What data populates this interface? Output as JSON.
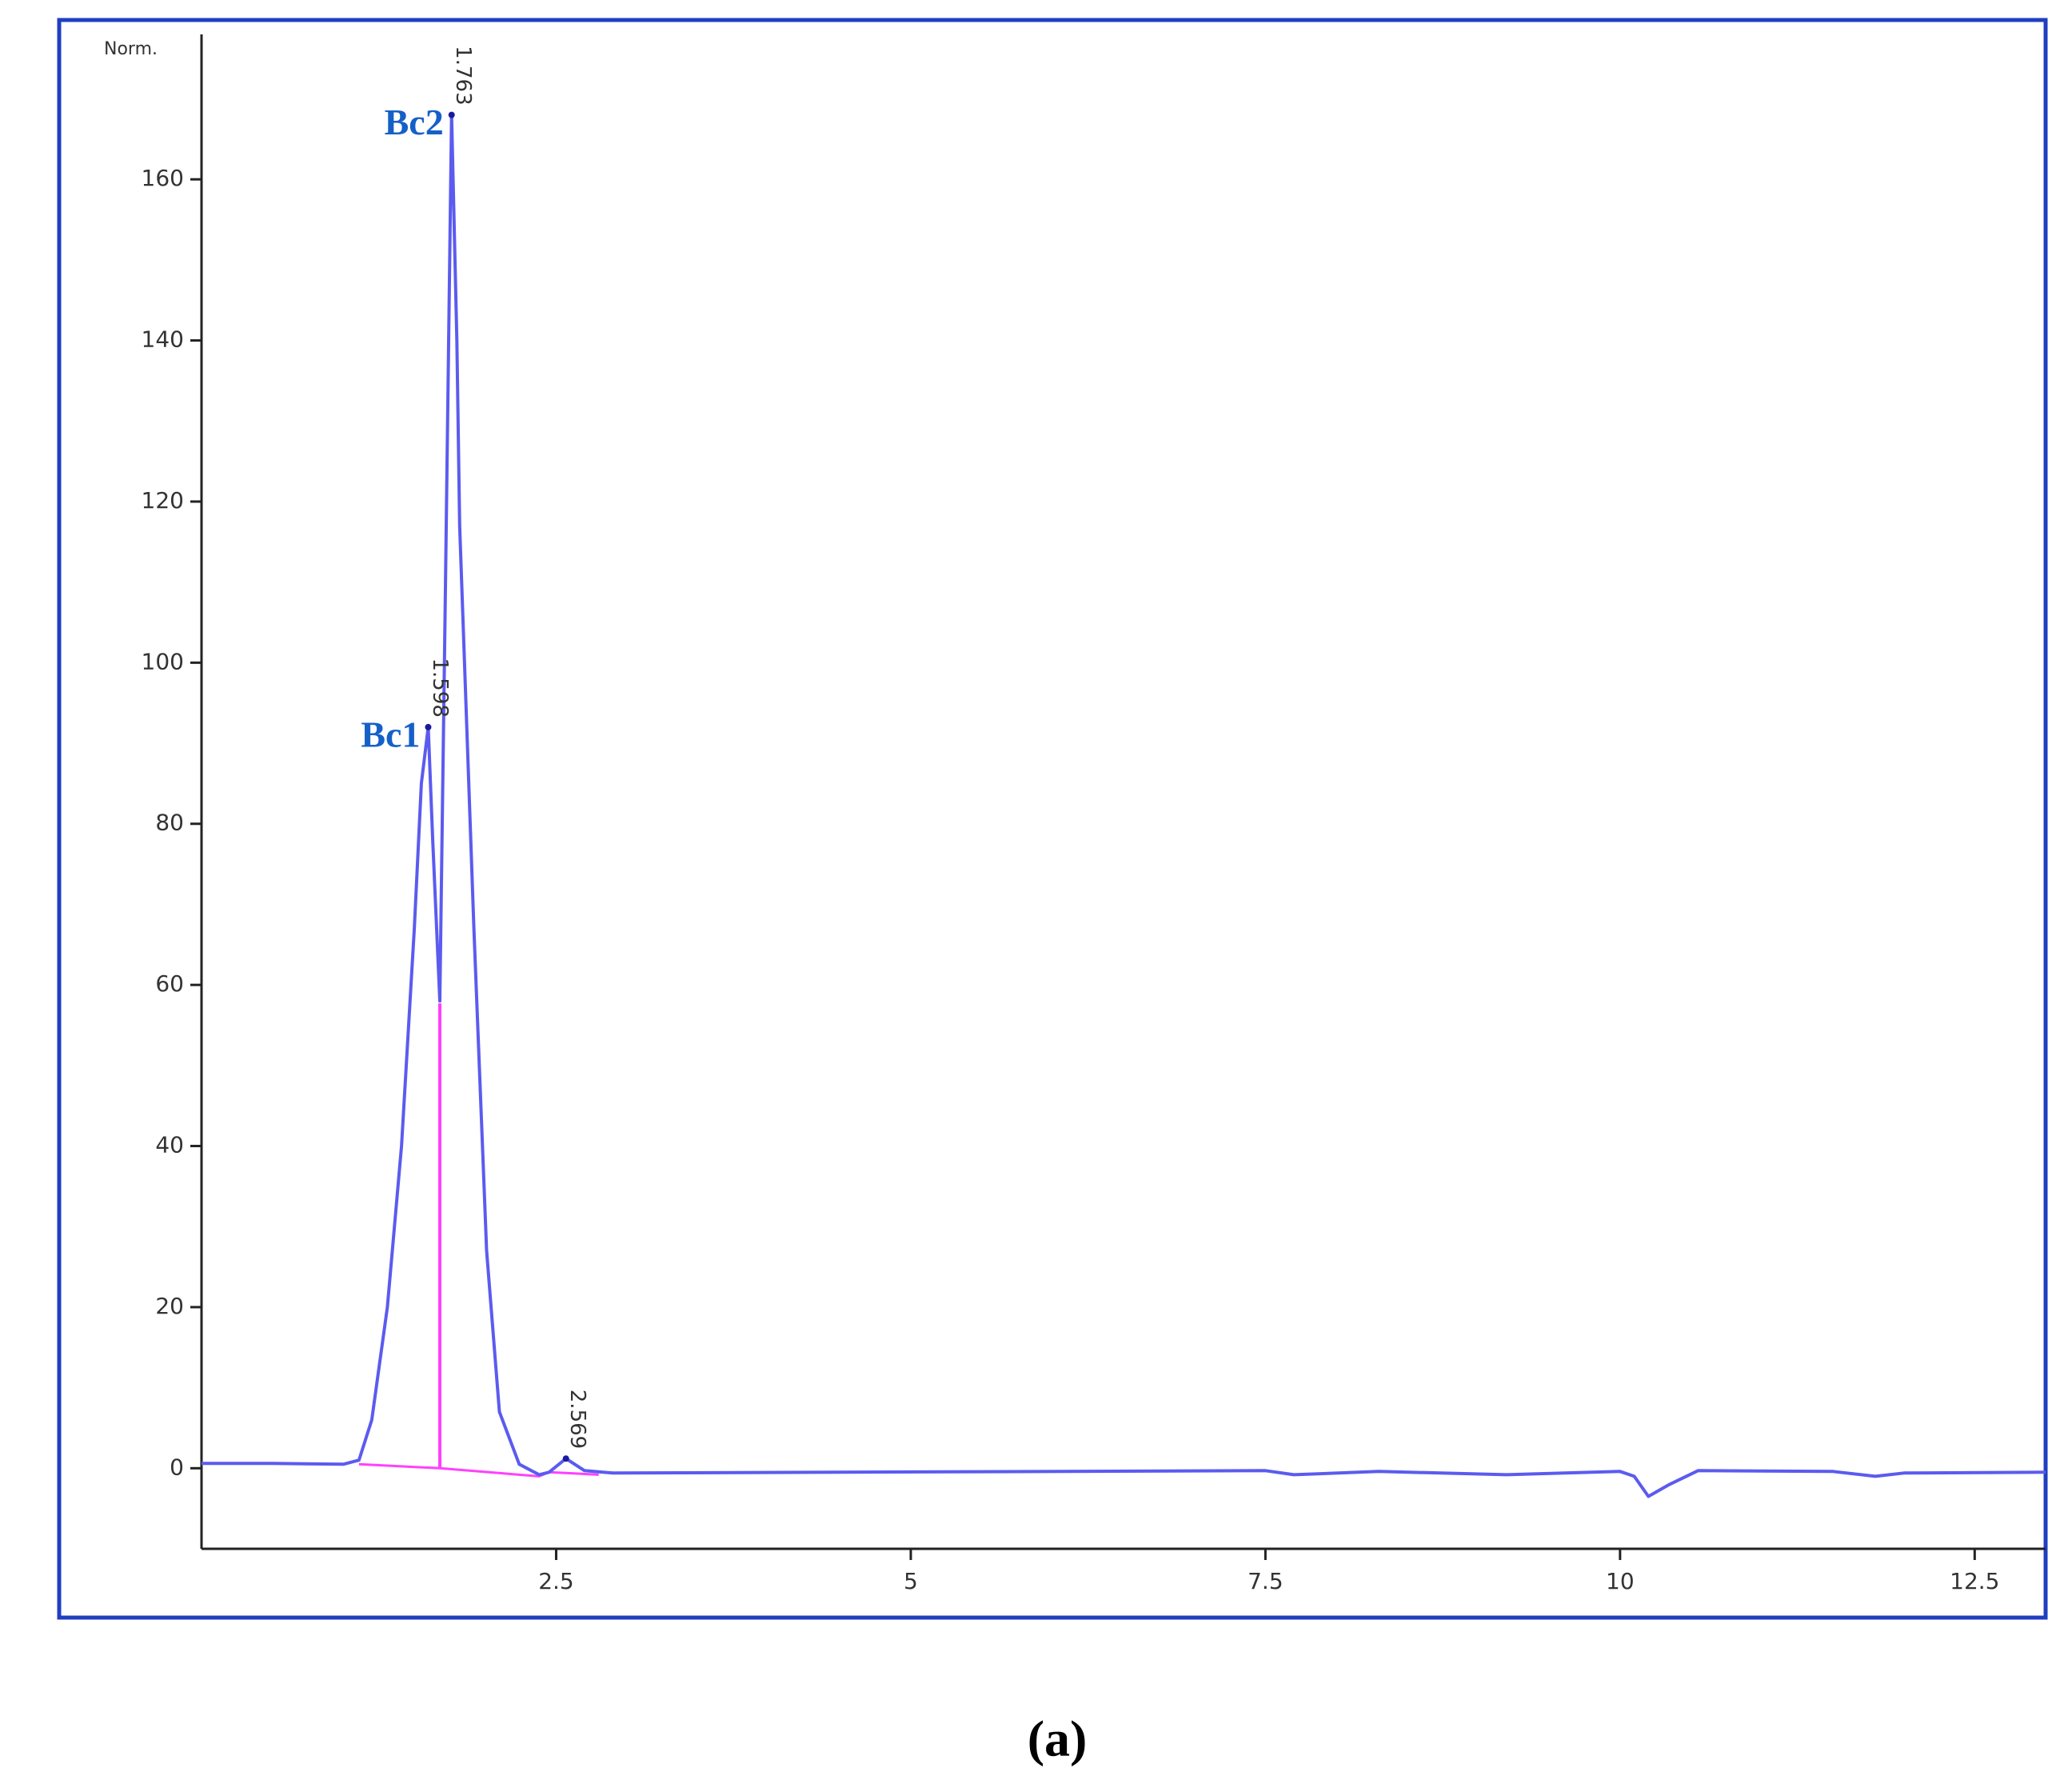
{
  "chart_data": {
    "type": "line",
    "y_axis_label": "Norm.",
    "caption": "(a)",
    "xlim": [
      0,
      13
    ],
    "ylim": [
      -10,
      177
    ],
    "xticks": [
      2.5,
      5,
      7.5,
      10,
      12.5
    ],
    "yticks": [
      0,
      20,
      40,
      60,
      80,
      100,
      120,
      140,
      160
    ],
    "color": "#5b5bf0",
    "x": [
      0,
      0.5,
      1.0,
      1.11,
      1.2,
      1.31,
      1.41,
      1.5,
      1.55,
      1.598,
      1.63,
      1.68,
      1.72,
      1.763,
      1.8,
      1.82,
      1.92,
      2.01,
      2.1,
      2.24,
      2.38,
      2.45,
      2.569,
      2.7,
      2.9,
      7.5,
      7.7,
      8.3,
      9.2,
      10.0,
      10.1,
      10.2,
      10.35,
      10.55,
      11.5,
      11.8,
      12.0,
      13
    ],
    "values": [
      0.6,
      0.6,
      0.5,
      1,
      6,
      20,
      40,
      67,
      85,
      92,
      78,
      58,
      110,
      168,
      140,
      117,
      67,
      27,
      7,
      0.5,
      -0.8,
      -0.5,
      1.2,
      -0.3,
      -0.6,
      -0.3,
      -0.8,
      -0.4,
      -0.8,
      -0.4,
      -1.0,
      -3.5,
      -2,
      -0.3,
      -0.4,
      -1.0,
      -0.6,
      -0.5
    ],
    "baseline": {
      "color": "#ff40ff",
      "x": [
        1.11,
        1.68,
        2.38,
        2.45,
        2.569,
        2.8
      ],
      "values": [
        0.5,
        0,
        -1,
        -0.5,
        -0.6,
        -0.8
      ]
    },
    "drop_line": {
      "x": [
        1.68,
        1.68
      ],
      "values": [
        0,
        57.7
      ]
    },
    "peaks": [
      {
        "time": 1.598,
        "height": 92,
        "name": "Bc1"
      },
      {
        "time": 1.763,
        "height": 168,
        "name": "Bc2"
      },
      {
        "time": 2.569,
        "height": 1.2
      }
    ]
  }
}
